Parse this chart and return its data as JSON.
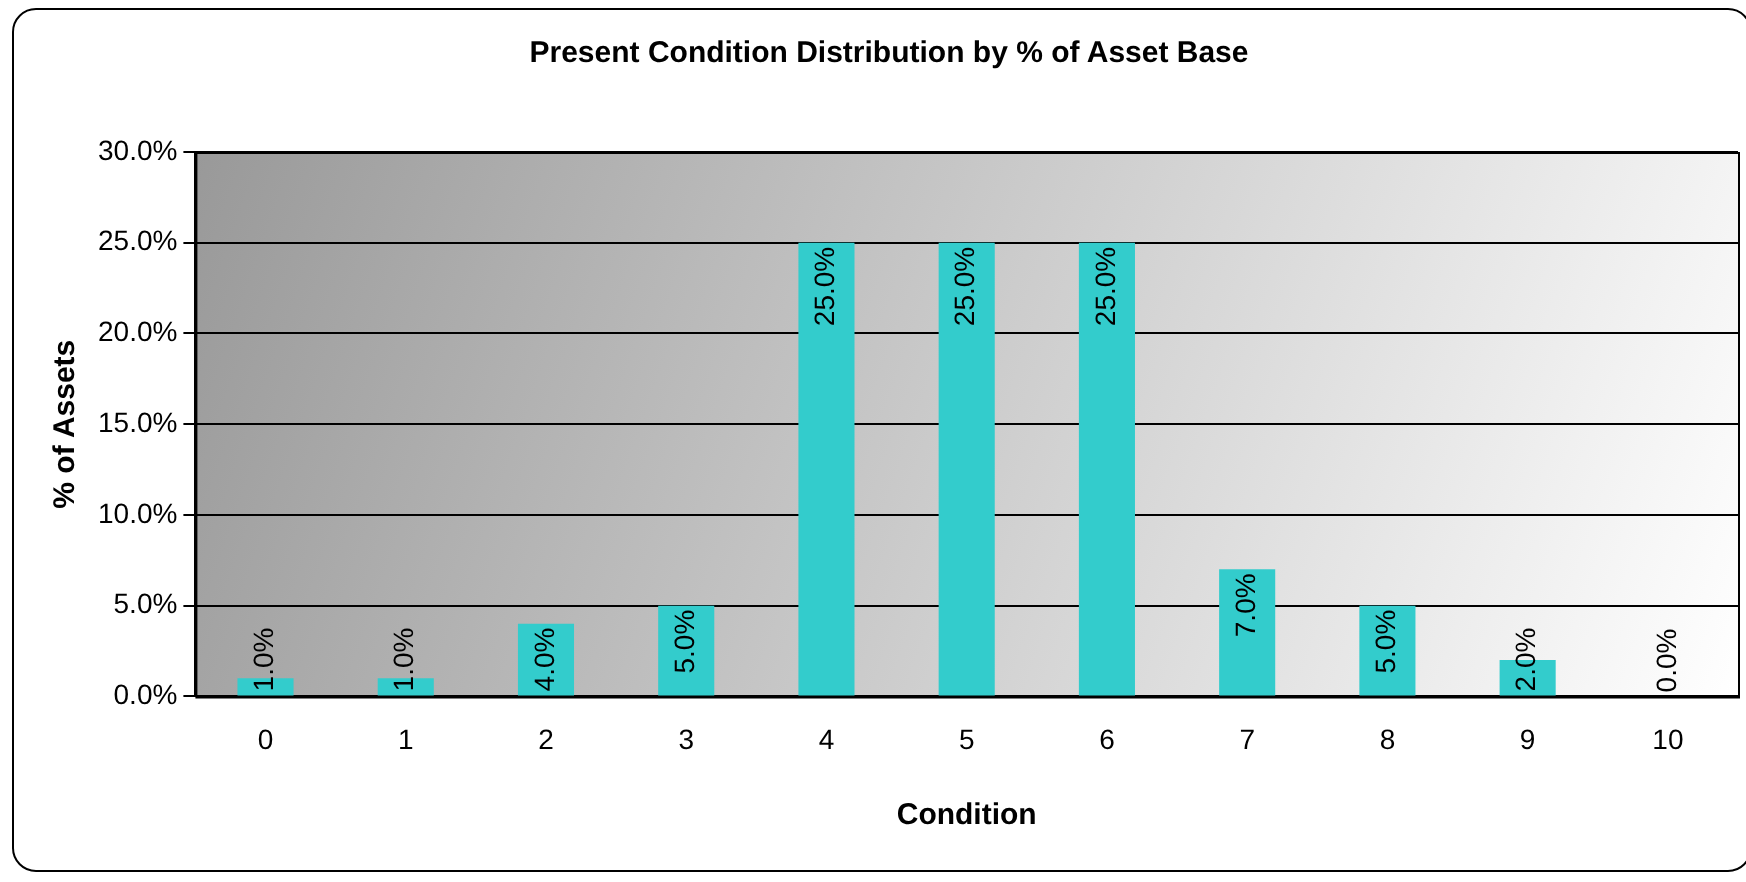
{
  "chart_data": {
    "type": "bar",
    "title": "Present Condition Distribution by % of Asset Base",
    "xlabel": "Condition",
    "ylabel": "% of Assets",
    "categories": [
      "0",
      "1",
      "2",
      "3",
      "4",
      "5",
      "6",
      "7",
      "8",
      "9",
      "10"
    ],
    "values": [
      1,
      1,
      4,
      5,
      25,
      25,
      25,
      7,
      5,
      2,
      0
    ],
    "value_labels": [
      "1.0%",
      "1.0%",
      "4.0%",
      "5.0%",
      "25.0%",
      "25.0%",
      "25.0%",
      "7.0%",
      "5.0%",
      "2.0%",
      "0.0%"
    ],
    "color": "#33cccc",
    "ylim": [
      0,
      30
    ],
    "yticks": [
      {
        "value": 0,
        "label": "0.0%"
      },
      {
        "value": 5,
        "label": "5.0%"
      },
      {
        "value": 10,
        "label": "10.0%"
      },
      {
        "value": 15,
        "label": "15.0%"
      },
      {
        "value": 20,
        "label": "20.0%"
      },
      {
        "value": 25,
        "label": "25.0%"
      },
      {
        "value": 30,
        "label": "30.0%"
      }
    ],
    "grid": "y",
    "legend": false
  }
}
